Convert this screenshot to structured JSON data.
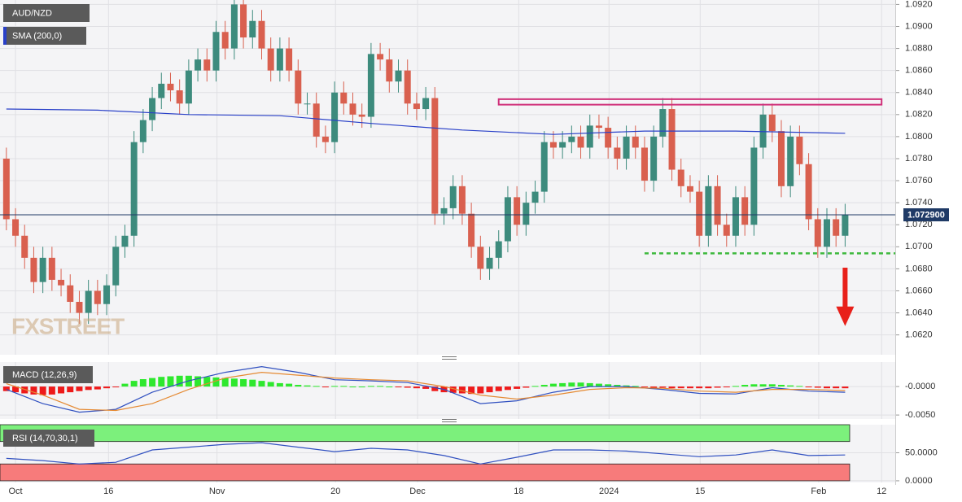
{
  "chart_data": [
    {
      "type": "candlestick",
      "title": "AUD/NZD",
      "open": [
        1.078,
        1.0725,
        1.071,
        1.069,
        1.0668,
        1.069,
        1.067,
        1.0665,
        1.065,
        1.064,
        1.066,
        1.0648,
        1.0665,
        1.07,
        1.071,
        1.0795,
        1.0815,
        1.0835,
        1.0848,
        1.0842,
        1.083,
        1.086,
        1.087,
        1.086,
        1.0895,
        1.088,
        1.092,
        1.089,
        1.0905,
        1.088,
        1.086,
        1.088,
        1.086,
        1.083,
        1.083,
        1.08,
        1.0795,
        1.084,
        1.083,
        1.082,
        1.0818,
        1.0875,
        1.087,
        1.085,
        1.086,
        1.083,
        1.0825,
        1.0835,
        1.073,
        1.0735,
        1.0755,
        1.073,
        1.07,
        1.068,
        1.069,
        1.0705,
        1.0745,
        1.072,
        1.074,
        1.075,
        1.0795,
        1.079,
        1.0795,
        1.08,
        1.079,
        1.081,
        1.0808,
        1.079,
        1.078,
        1.08,
        1.079,
        1.076,
        1.08,
        1.0825,
        1.077,
        1.0755,
        1.075,
        1.071,
        1.0755,
        1.072,
        1.071,
        1.0745,
        1.072,
        1.079,
        1.082,
        1.0805,
        1.0755,
        1.08,
        1.0775,
        1.0725,
        1.07,
        1.0725,
        1.071
      ],
      "high": [
        1.079,
        1.0735,
        1.072,
        1.07,
        1.07,
        1.07,
        1.068,
        1.0675,
        1.066,
        1.067,
        1.067,
        1.0675,
        1.071,
        1.072,
        1.0805,
        1.0825,
        1.0845,
        1.0858,
        1.0858,
        1.0852,
        1.087,
        1.088,
        1.088,
        1.0905,
        1.0905,
        1.093,
        1.093,
        1.0915,
        1.0915,
        1.089,
        1.089,
        1.089,
        1.087,
        1.084,
        1.084,
        1.081,
        1.085,
        1.085,
        1.084,
        1.083,
        1.0885,
        1.0885,
        1.088,
        1.087,
        1.087,
        1.084,
        1.0845,
        1.0845,
        1.0745,
        1.0765,
        1.0765,
        1.074,
        1.071,
        1.07,
        1.0715,
        1.0755,
        1.0755,
        1.075,
        1.076,
        1.0805,
        1.0805,
        1.0805,
        1.081,
        1.081,
        1.082,
        1.082,
        1.0818,
        1.08,
        1.081,
        1.081,
        1.08,
        1.081,
        1.0835,
        1.0835,
        1.078,
        1.0765,
        1.076,
        1.0765,
        1.0765,
        1.073,
        1.0755,
        1.0755,
        1.08,
        1.083,
        1.083,
        1.0815,
        1.081,
        1.081,
        1.0785,
        1.0735,
        1.0735,
        1.0735,
        1.0739
      ],
      "low": [
        1.0715,
        1.07,
        1.068,
        1.0658,
        1.0658,
        1.066,
        1.0655,
        1.064,
        1.063,
        1.063,
        1.0638,
        1.0638,
        1.0655,
        1.069,
        1.07,
        1.0785,
        1.0805,
        1.0825,
        1.0832,
        1.082,
        1.082,
        1.085,
        1.085,
        1.085,
        1.087,
        1.087,
        1.088,
        1.088,
        1.087,
        1.085,
        1.085,
        1.085,
        1.082,
        1.082,
        1.079,
        1.0785,
        1.0785,
        1.082,
        1.081,
        1.0808,
        1.0808,
        1.086,
        1.084,
        1.084,
        1.082,
        1.0815,
        1.0815,
        1.072,
        1.072,
        1.0725,
        1.072,
        1.069,
        1.067,
        1.067,
        1.068,
        1.0695,
        1.071,
        1.071,
        1.073,
        1.074,
        1.078,
        1.078,
        1.0785,
        1.078,
        1.078,
        1.0798,
        1.078,
        1.077,
        1.077,
        1.078,
        1.075,
        1.075,
        1.079,
        1.076,
        1.0745,
        1.074,
        1.07,
        1.07,
        1.071,
        1.07,
        1.07,
        1.071,
        1.071,
        1.078,
        1.0795,
        1.0745,
        1.0745,
        1.0765,
        1.0715,
        1.069,
        1.069,
        1.07,
        1.07
      ],
      "close": [
        1.0725,
        1.071,
        1.069,
        1.0668,
        1.069,
        1.067,
        1.0665,
        1.065,
        1.064,
        1.066,
        1.0648,
        1.0665,
        1.07,
        1.071,
        1.0795,
        1.0815,
        1.0835,
        1.0848,
        1.0842,
        1.083,
        1.086,
        1.087,
        1.086,
        1.0895,
        1.088,
        1.092,
        1.089,
        1.0905,
        1.088,
        1.086,
        1.088,
        1.086,
        1.083,
        1.083,
        1.08,
        1.0795,
        1.084,
        1.083,
        1.082,
        1.0818,
        1.0875,
        1.087,
        1.085,
        1.086,
        1.083,
        1.0825,
        1.0835,
        1.073,
        1.0735,
        1.0755,
        1.073,
        1.07,
        1.068,
        1.069,
        1.0705,
        1.0745,
        1.072,
        1.074,
        1.075,
        1.0795,
        1.079,
        1.0795,
        1.08,
        1.079,
        1.081,
        1.0808,
        1.079,
        1.078,
        1.08,
        1.079,
        1.076,
        1.08,
        1.0825,
        1.077,
        1.0755,
        1.075,
        1.071,
        1.0755,
        1.072,
        1.071,
        1.0745,
        1.072,
        1.079,
        1.082,
        1.0805,
        1.0755,
        1.08,
        1.0775,
        1.0725,
        1.07,
        1.0725,
        1.071,
        1.0729
      ],
      "up_color": "#3d8b7d",
      "down_color": "#d9604f",
      "xlim": [
        -0.7,
        97.5
      ],
      "ylim": [
        1.0602,
        1.0924
      ],
      "yticks": [
        {
          "value": 1.062,
          "label": "1.0620"
        },
        {
          "value": 1.064,
          "label": "1.0640"
        },
        {
          "value": 1.066,
          "label": "1.0660"
        },
        {
          "value": 1.068,
          "label": "1.0680"
        },
        {
          "value": 1.07,
          "label": "1.0700"
        },
        {
          "value": 1.072,
          "label": "1.0720"
        },
        {
          "value": 1.074,
          "label": "1.0740"
        },
        {
          "value": 1.076,
          "label": "1.0760"
        },
        {
          "value": 1.078,
          "label": "1.0780"
        },
        {
          "value": 1.08,
          "label": "1.0800"
        },
        {
          "value": 1.082,
          "label": "1.0820"
        },
        {
          "value": 1.084,
          "label": "1.0840"
        },
        {
          "value": 1.086,
          "label": "1.0860"
        },
        {
          "value": 1.088,
          "label": "1.0880"
        },
        {
          "value": 1.09,
          "label": "1.0900"
        },
        {
          "value": 1.092,
          "label": "1.0920"
        }
      ],
      "grid": true,
      "series": [
        {
          "name": "SMA (200,0)",
          "color": "#2940c8",
          "x": [
            0,
            10,
            20,
            30,
            40,
            50,
            60,
            70,
            80,
            92
          ],
          "values": [
            1.0825,
            1.0824,
            1.082,
            1.0819,
            1.0812,
            1.0806,
            1.0802,
            1.0805,
            1.0805,
            1.0803
          ]
        }
      ],
      "price_marker": {
        "value": 1.0729,
        "label": "1.072900",
        "color": "#1f3a66"
      },
      "resistance": {
        "x": [
          54,
          96
        ],
        "y": [
          1.0829,
          1.0834
        ],
        "color": "#d0307a"
      },
      "support": {
        "x": [
          70,
          97.5
        ],
        "y": 1.0694,
        "color": "#3cb83c"
      },
      "arrow": {
        "x": 92,
        "y": [
          1.0681,
          1.0628
        ],
        "color": "#e8201a"
      },
      "watermark": "FXSTREET"
    },
    {
      "type": "macd",
      "title": "MACD (12,26,9)",
      "xlim": [
        -0.7,
        97.5
      ],
      "ylim": [
        -0.0057,
        0.0043
      ],
      "yticks": [
        {
          "value": 0,
          "label": "-0.0000"
        },
        {
          "value": -0.005,
          "label": "-0.0050"
        }
      ],
      "histogram": [
        -0.0008,
        -0.001,
        -0.0012,
        -0.0014,
        -0.0015,
        -0.0014,
        -0.0012,
        -0.001,
        -0.0008,
        -0.0006,
        -0.0005,
        -0.0003,
        -0.0001,
        0.0005,
        0.001,
        0.0013,
        0.0015,
        0.0017,
        0.0018,
        0.0019,
        0.0019,
        0.0018,
        0.0017,
        0.0016,
        0.0015,
        0.0014,
        0.0013,
        0.0012,
        0.001,
        0.0008,
        0.0006,
        0.0005,
        0.0003,
        0.0002,
        0.0001,
        -0.0001,
        0.0001,
        0.0001,
        0.0,
        0.0,
        0.0001,
        0.0001,
        0.0,
        -0.0001,
        -0.0002,
        -0.0003,
        -0.0004,
        -0.0008,
        -0.001,
        -0.0011,
        -0.0012,
        -0.0013,
        -0.0012,
        -0.001,
        -0.0008,
        -0.0006,
        -0.0004,
        -0.0002,
        0.0001,
        0.0003,
        0.0005,
        0.0006,
        0.0007,
        0.0007,
        0.0006,
        0.0005,
        0.0004,
        0.0003,
        0.0002,
        0.0001,
        -0.0001,
        -0.0002,
        -0.0002,
        -0.0003,
        -0.0003,
        -0.0003,
        -0.0003,
        -0.0003,
        -0.0002,
        -0.0001,
        0.0001,
        0.0003,
        0.0004,
        0.0004,
        0.0004,
        0.0003,
        0.0002,
        0.0001,
        -0.0001,
        -0.0002,
        -0.0003,
        -0.0003,
        -0.0003
      ],
      "hist_up_color": "#2ee82e",
      "hist_down_color": "#ee1a1a",
      "series": [
        {
          "color": "#3050c0",
          "x": [
            0,
            4,
            8,
            12,
            16,
            20,
            24,
            28,
            32,
            36,
            40,
            44,
            48,
            52,
            56,
            60,
            64,
            68,
            72,
            76,
            80,
            84,
            88,
            92
          ],
          "values": [
            -0.0005,
            -0.003,
            -0.0045,
            -0.004,
            -0.001,
            0.001,
            0.0025,
            0.0035,
            0.0025,
            0.0012,
            0.001,
            0.0007,
            -0.0005,
            -0.003,
            -0.0025,
            -0.001,
            0.0,
            0.0,
            -0.0005,
            -0.0012,
            -0.0013,
            -0.0002,
            -0.0008,
            -0.001
          ]
        },
        {
          "color": "#e58a33",
          "x": [
            0,
            4,
            8,
            12,
            16,
            20,
            24,
            28,
            32,
            36,
            40,
            44,
            48,
            52,
            56,
            60,
            64,
            68,
            72,
            76,
            80,
            84,
            88,
            92
          ],
          "values": [
            0.0005,
            -0.0015,
            -0.004,
            -0.0042,
            -0.003,
            -0.0005,
            0.0015,
            0.0025,
            0.002,
            0.0015,
            0.0012,
            0.001,
            0.0,
            -0.0015,
            -0.0022,
            -0.0015,
            -0.0005,
            -0.0002,
            -0.0003,
            -0.0008,
            -0.001,
            -0.0005,
            -0.0005,
            -0.0007
          ]
        }
      ]
    },
    {
      "type": "rsi",
      "title": "RSI (14,70,30,1)",
      "xlim": [
        -0.7,
        97.5
      ],
      "ylim": [
        -3,
        100
      ],
      "yticks": [
        {
          "value": 50,
          "label": "50.0000"
        },
        {
          "value": 0,
          "label": "0.0000"
        }
      ],
      "bands": [
        {
          "range": [
            70,
            100
          ],
          "color": "#7cf07c"
        },
        {
          "range": [
            0,
            30
          ],
          "color": "#f77b7b"
        }
      ],
      "series": [
        {
          "color": "#3050c0",
          "x": [
            0,
            4,
            8,
            12,
            16,
            20,
            24,
            28,
            32,
            36,
            40,
            44,
            48,
            52,
            56,
            60,
            64,
            68,
            72,
            76,
            80,
            84,
            88,
            92
          ],
          "values": [
            40,
            36,
            30,
            33,
            55,
            60,
            65,
            68,
            60,
            52,
            58,
            55,
            45,
            30,
            42,
            55,
            55,
            53,
            48,
            43,
            46,
            55,
            45,
            46
          ]
        }
      ],
      "xticks": [
        {
          "value": 1,
          "label": "Oct"
        },
        {
          "value": 11.2,
          "label": "16"
        },
        {
          "value": 23.1,
          "label": "Nov"
        },
        {
          "value": 36.1,
          "label": "20"
        },
        {
          "value": 45.1,
          "label": "Dec"
        },
        {
          "value": 56.2,
          "label": "18"
        },
        {
          "value": 66.1,
          "label": "2024"
        },
        {
          "value": 76.1,
          "label": "15"
        },
        {
          "value": 89.1,
          "label": "Feb"
        },
        {
          "value": 96,
          "label": "12"
        }
      ]
    }
  ]
}
